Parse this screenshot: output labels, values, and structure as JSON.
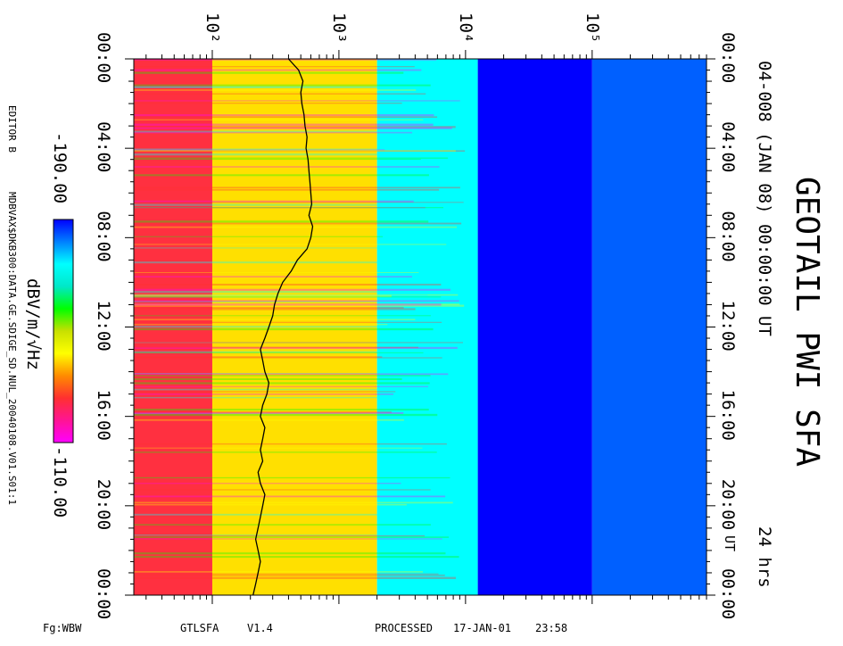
{
  "title": "GEOTAIL PWI SFA",
  "subtitle": "04-008 (JAN 08) 00:00:00 UT",
  "duration": "24 hrs",
  "editor": "EDITOR B",
  "file_path": "MDBVAX$DKB300:DATA.GE.SDIGE_SD.NUL_20040108.V01.S01:1",
  "footer": {
    "mode": "Fg:WBW",
    "program": "GTLSFA",
    "version": "V1.4",
    "processed_label": "PROCESSED",
    "processed_date": "17-JAN-01",
    "processed_time": "23:58"
  },
  "colorbar": {
    "min_label": "-190.00",
    "max_label": "-110.00",
    "unit_label": "dBV/m/√Hz",
    "colors": [
      "#ff00ff",
      "#ff1493",
      "#ff3030",
      "#ff8c00",
      "#ffff00",
      "#c8e000",
      "#00ff00",
      "#00e8c8",
      "#00ffff",
      "#0080ff",
      "#0000ff"
    ]
  },
  "chart_data": {
    "type": "heatmap",
    "title": "GEOTAIL PWI SFA",
    "xlabel": "",
    "ylabel": "UT",
    "x_scale": "log",
    "x_tick_labels": [
      "10²",
      "10³",
      "10⁴",
      "10⁵"
    ],
    "x_ticks": [
      100,
      1000,
      10000,
      100000
    ],
    "xlim": [
      24,
      800000
    ],
    "y_tick_labels": [
      "00:00",
      "04:00",
      "08:00",
      "12:00",
      "16:00",
      "20:00",
      "00:00"
    ],
    "y_ticks_hours": [
      0,
      4,
      8,
      12,
      16,
      20,
      24
    ],
    "ylim_hours": [
      0,
      24
    ],
    "right_axis_unit": "UT",
    "z_range": [
      -190.0,
      -110.0
    ],
    "z_unit": "dBV/m/√Hz",
    "bands": [
      {
        "f_min": 24,
        "f_max": 100,
        "color": "#ff3040"
      },
      {
        "f_min": 100,
        "f_max": 2000,
        "color": "#ffe000"
      },
      {
        "f_min": 2000,
        "f_max": 12500,
        "color": "#00ffff"
      },
      {
        "f_min": 12500,
        "f_max": 100000,
        "color": "#0000ff"
      },
      {
        "f_min": 100000,
        "f_max": 800000,
        "color": "#0060ff"
      }
    ],
    "overlay_trace": {
      "name": "",
      "hours": [
        0,
        0.5,
        1,
        1.5,
        2,
        2.5,
        3,
        3.5,
        4,
        4.5,
        5,
        5.5,
        6,
        6.5,
        7,
        7.5,
        8,
        8.5,
        9,
        9.5,
        10,
        10.5,
        11,
        11.5,
        12,
        12.5,
        13,
        13.5,
        14,
        14.5,
        15,
        15.5,
        16,
        16.5,
        17,
        17.5,
        18,
        18.5,
        19,
        19.5,
        20,
        20.5,
        21,
        21.5,
        22,
        22.5,
        23,
        23.5,
        24
      ],
      "freq_hz": [
        400,
        480,
        520,
        500,
        510,
        530,
        540,
        560,
        550,
        570,
        580,
        590,
        600,
        610,
        580,
        620,
        600,
        560,
        470,
        420,
        360,
        330,
        310,
        300,
        280,
        260,
        240,
        250,
        260,
        280,
        270,
        250,
        240,
        260,
        250,
        240,
        250,
        230,
        240,
        260,
        250,
        240,
        230,
        220,
        230,
        240,
        230,
        220,
        210
      ]
    }
  }
}
